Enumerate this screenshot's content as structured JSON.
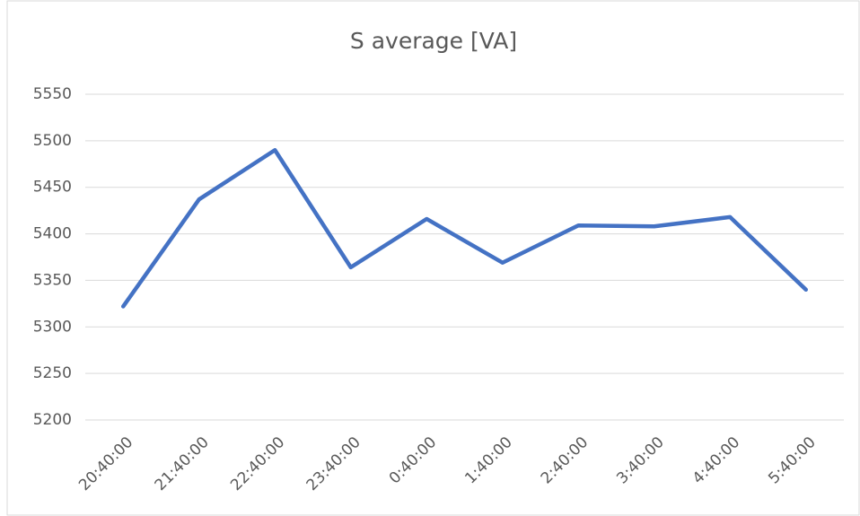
{
  "chart_data": {
    "type": "line",
    "title": "S average [VA]",
    "categories": [
      "20:40:00",
      "21:40:00",
      "22:40:00",
      "23:40:00",
      "0:40:00",
      "1:40:00",
      "2:40:00",
      "3:40:00",
      "4:40:00",
      "5:40:00"
    ],
    "series": [
      {
        "name": "S average [VA]",
        "color": "#4472c4",
        "values": [
          5322,
          5437,
          5490,
          5364,
          5416,
          5369,
          5409,
          5408,
          5418,
          5340
        ]
      }
    ],
    "ylim": [
      5200,
      5550
    ],
    "yticks": [
      5200,
      5250,
      5300,
      5350,
      5400,
      5450,
      5500,
      5550
    ],
    "grid": true
  }
}
